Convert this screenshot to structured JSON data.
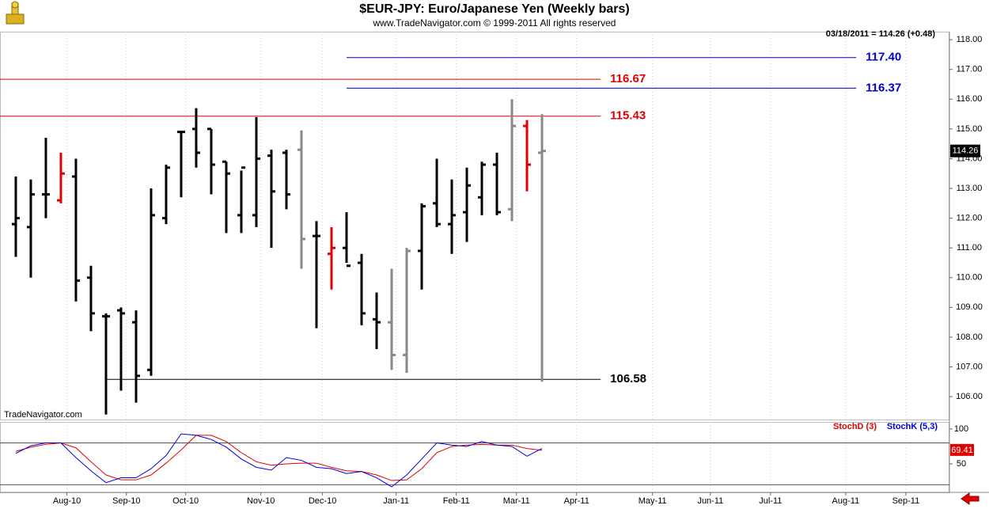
{
  "chart_data": [
    {
      "type": "ohlc",
      "title": "$EUR-JPY:  Euro/Japanese Yen  (Weekly bars)",
      "subtitle": "www.TradeNavigator.com © 1999-2011 All rights reserved",
      "status": "03/18/2011 = 114.26 (+0.48)",
      "watermark": "TradeNavigator.com",
      "last_value": 114.26,
      "x": [
        0,
        1,
        2,
        3,
        4,
        5,
        6,
        7,
        8,
        9,
        10,
        11,
        12,
        13,
        14,
        15,
        16,
        17,
        18,
        19,
        20,
        21,
        22,
        23,
        24,
        25,
        26,
        27,
        28,
        29,
        30,
        31,
        32,
        33,
        34,
        35
      ],
      "open": [
        111.8,
        111.7,
        112.8,
        112.6,
        113.4,
        110.0,
        108.7,
        108.9,
        108.5,
        106.9,
        112.0,
        114.9,
        115.0,
        115.0,
        113.9,
        112.1,
        112.1,
        114.1,
        114.2,
        114.3,
        111.4,
        110.8,
        111.0,
        110.5,
        108.6,
        108.5,
        107.4,
        110.9,
        112.5,
        111.8,
        112.2,
        112.7,
        113.8,
        112.3,
        115.1,
        114.2
      ],
      "high": [
        113.4,
        113.3,
        114.7,
        114.2,
        114.0,
        110.4,
        108.8,
        109.0,
        108.9,
        113.0,
        113.8,
        114.9,
        115.7,
        115.0,
        113.9,
        113.6,
        115.4,
        114.3,
        114.3,
        114.95,
        111.9,
        111.7,
        112.2,
        110.8,
        109.5,
        110.3,
        111.0,
        112.5,
        114.0,
        113.3,
        113.7,
        113.9,
        114.2,
        116.0,
        115.3,
        115.5
      ],
      "low": [
        110.7,
        110.0,
        112.0,
        112.5,
        109.2,
        108.2,
        105.4,
        106.2,
        105.8,
        106.7,
        111.8,
        112.7,
        113.7,
        112.8,
        111.5,
        111.5,
        111.7,
        111.0,
        112.3,
        110.3,
        108.3,
        109.6,
        110.5,
        108.4,
        107.6,
        106.9,
        106.8,
        109.6,
        111.7,
        110.8,
        111.2,
        112.1,
        112.1,
        111.9,
        112.9,
        106.5
      ],
      "close": [
        112.0,
        112.8,
        112.8,
        113.5,
        109.9,
        108.8,
        108.7,
        108.8,
        106.7,
        112.1,
        113.7,
        114.9,
        114.2,
        113.8,
        113.5,
        113.7,
        114.0,
        112.9,
        112.8,
        111.3,
        111.4,
        111.0,
        110.4,
        108.8,
        108.5,
        107.4,
        110.9,
        112.4,
        111.8,
        112.1,
        113.1,
        113.8,
        112.2,
        115.1,
        113.8,
        114.26
      ],
      "bar_colors": [
        "#000",
        "#000",
        "#000",
        "#e00000",
        "#000",
        "#000",
        "#000",
        "#000",
        "#000",
        "#000",
        "#000",
        "#000",
        "#000",
        "#000",
        "#000",
        "#000",
        "#000",
        "#000",
        "#000",
        "#888",
        "#000",
        "#e00000",
        "#000",
        "#000",
        "#000",
        "#888",
        "#888",
        "#000",
        "#000",
        "#000",
        "#000",
        "#000",
        "#000",
        "#888",
        "#e00000",
        "#888"
      ],
      "levels": [
        {
          "value": 117.4,
          "label": "117.40",
          "color": "#0000c8",
          "from": 22,
          "to": 55.9
        },
        {
          "value": 116.37,
          "label": "116.37",
          "color": "#0000c8",
          "from": 22,
          "to": 55.9
        },
        {
          "value": 116.67,
          "label": "116.67",
          "color": "#e00000",
          "from": -1.05,
          "to": 38.9
        },
        {
          "value": 115.43,
          "label": "115.43",
          "color": "#e00000",
          "from": -1.05,
          "to": 38.9
        },
        {
          "value": 106.58,
          "label": "106.58",
          "color": "#000000",
          "from": 6,
          "to": 38.9
        }
      ],
      "xlim": [
        -1.05,
        62.1
      ],
      "ylim": [
        105.23,
        118.27
      ],
      "yticks": [
        {
          "value": 106,
          "label": "106.00"
        },
        {
          "value": 107,
          "label": "107.00"
        },
        {
          "value": 108,
          "label": "108.00"
        },
        {
          "value": 109,
          "label": "109.00"
        },
        {
          "value": 110,
          "label": "110.00"
        },
        {
          "value": 111,
          "label": "111.00"
        },
        {
          "value": 112,
          "label": "112.00"
        },
        {
          "value": 113,
          "label": "113.00"
        },
        {
          "value": 114,
          "label": "114.00"
        },
        {
          "value": 115,
          "label": "115.00"
        },
        {
          "value": 116,
          "label": "116.00"
        },
        {
          "value": 117,
          "label": "117.00"
        },
        {
          "value": 118,
          "label": "118.00"
        }
      ],
      "grid": true
    },
    {
      "type": "line",
      "x": [
        0,
        1,
        2,
        3,
        4,
        5,
        6,
        7,
        8,
        9,
        10,
        11,
        12,
        13,
        14,
        15,
        16,
        17,
        18,
        19,
        20,
        21,
        22,
        23,
        24,
        25,
        26,
        27,
        28,
        29,
        30,
        31,
        32,
        33,
        34,
        35
      ],
      "series": [
        {
          "name": "StochD (3)",
          "color": "#e00000",
          "values": [
            68,
            74,
            78,
            80,
            73,
            53,
            34,
            27,
            27,
            34,
            51,
            70,
            91,
            91,
            82,
            66,
            53,
            48,
            50,
            51,
            51,
            45,
            40,
            39,
            34,
            26,
            27,
            43,
            66,
            75,
            77,
            78,
            77,
            77,
            72,
            69.41
          ]
        },
        {
          "name": "StochK (5,3)",
          "color": "#0000e0",
          "values": [
            65,
            76,
            80,
            80,
            59,
            40,
            23,
            30,
            30,
            43,
            62,
            93,
            91,
            85,
            74,
            57,
            45,
            41,
            59,
            55,
            45,
            43,
            36,
            39,
            30,
            17,
            34,
            57,
            80,
            77,
            75,
            82,
            77,
            75,
            61,
            72
          ]
        }
      ],
      "levels": [
        80,
        20
      ],
      "xlim": [
        -1.05,
        62.1
      ],
      "ylim": [
        9,
        110.2
      ],
      "yticks": [
        50,
        100
      ],
      "xticks": [
        {
          "value": 3.4,
          "label": "Aug-10"
        },
        {
          "value": 7.36,
          "label": "Sep-10"
        },
        {
          "value": 11.3,
          "label": "Oct-10"
        },
        {
          "value": 16.3,
          "label": "Nov-10"
        },
        {
          "value": 20.4,
          "label": "Dec-10"
        },
        {
          "value": 25.3,
          "label": "Jan-11"
        },
        {
          "value": 29.3,
          "label": "Feb-11"
        },
        {
          "value": 33.3,
          "label": "Mar-11"
        },
        {
          "value": 37.3,
          "label": "Apr-11"
        },
        {
          "value": 42.35,
          "label": "May-11"
        },
        {
          "value": 46.2,
          "label": "Jun-11"
        },
        {
          "value": 50.2,
          "label": "Jul-11"
        },
        {
          "value": 55.2,
          "label": "Aug-11"
        },
        {
          "value": 59.2,
          "label": "Sep-11"
        }
      ],
      "grid": true
    }
  ]
}
